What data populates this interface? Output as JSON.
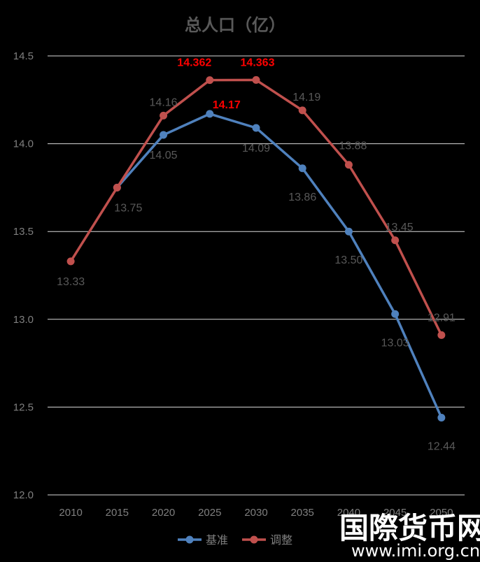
{
  "chart_data": {
    "type": "line",
    "title": "总人口（亿）",
    "categories": [
      "2010",
      "2015",
      "2020",
      "2025",
      "2030",
      "2035",
      "2040",
      "2045",
      "2050"
    ],
    "ylim": [
      12.0,
      14.5
    ],
    "yticks": [
      "12.0",
      "12.5",
      "13.0",
      "13.5",
      "14.0",
      "14.5"
    ],
    "grid": true,
    "legend_position": "bottom",
    "series": [
      {
        "name": "基准",
        "color": "#4f81bd",
        "values": [
          null,
          13.75,
          14.05,
          14.17,
          14.09,
          13.86,
          13.5,
          13.03,
          12.44
        ],
        "labels": [
          "",
          "13.75",
          "14.05",
          "14.17",
          "14.09",
          "13.86",
          "13.50",
          "13.03",
          "12.44"
        ],
        "label_colors": [
          "",
          "#595959",
          "#595959",
          "#ff0000",
          "#595959",
          "#595959",
          "#595959",
          "#595959",
          "#595959"
        ]
      },
      {
        "name": "调整",
        "color": "#c0504d",
        "values": [
          13.33,
          13.75,
          14.16,
          14.362,
          14.363,
          14.19,
          13.88,
          13.45,
          12.91
        ],
        "labels": [
          "13.33",
          "",
          "14.16",
          "14.362",
          "14.363",
          "14.19",
          "13.88",
          "13.45",
          "12.91"
        ],
        "label_colors": [
          "#595959",
          "",
          "#595959",
          "#ff0000",
          "#ff0000",
          "#595959",
          "#595959",
          "#595959",
          "#595959"
        ]
      }
    ]
  },
  "watermark": {
    "text": "国際货币网",
    "url": "www.imi.org.cn"
  }
}
